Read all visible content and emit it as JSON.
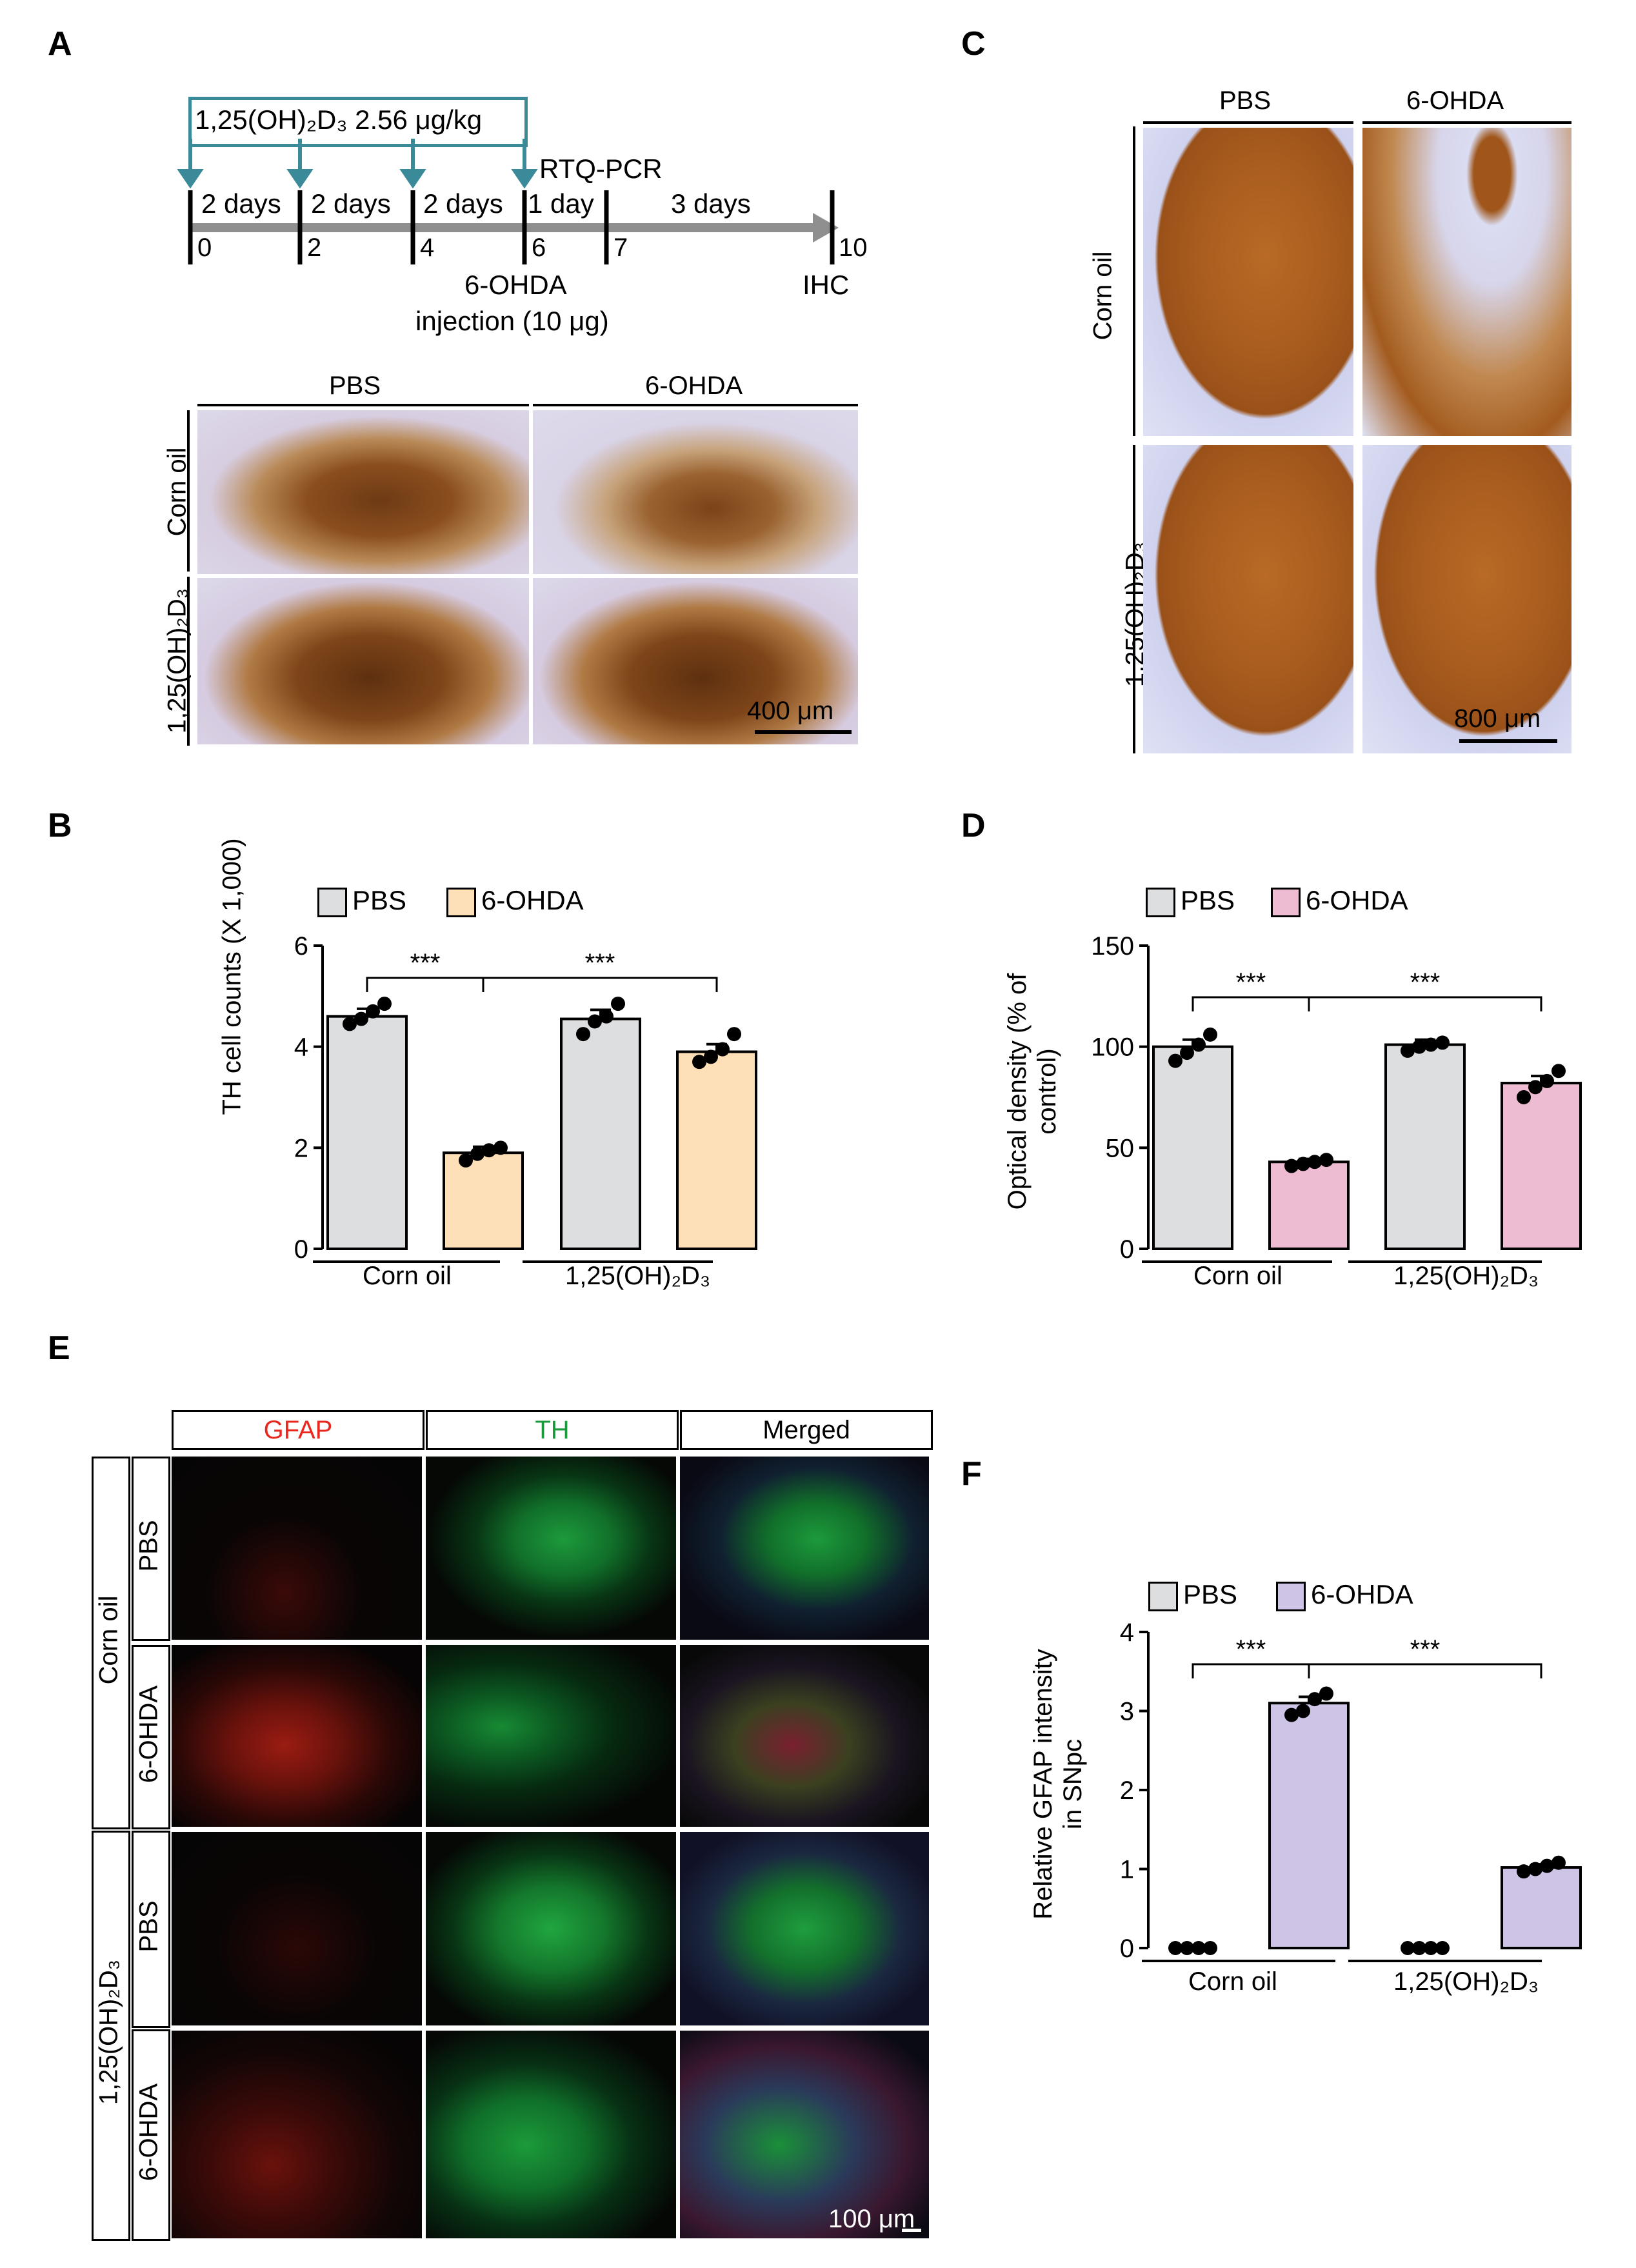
{
  "panels": {
    "A": "A",
    "B": "B",
    "C": "C",
    "D": "D",
    "E": "E",
    "F": "F"
  },
  "timeline": {
    "treatment": "1,25(OH)₂D₃ 2.56 μg/kg",
    "rtq": "RTQ-PCR",
    "intervals": [
      "2 days",
      "2 days",
      "2 days",
      "1 day",
      "3 days"
    ],
    "days": [
      "0",
      "2",
      "4",
      "6",
      "7",
      "10"
    ],
    "lesion": "6-OHDA",
    "lesion_dose": "injection (10 μg)",
    "ihc": "IHC"
  },
  "ihc_A": {
    "cols": [
      "PBS",
      "6-OHDA"
    ],
    "rows": [
      "Corn oil",
      "1,25(OH)₂D₃"
    ],
    "scale": "400 μm"
  },
  "ihc_C": {
    "cols": [
      "PBS",
      "6-OHDA"
    ],
    "rows": [
      "Corn oil",
      "1,25(OH)₂D₃"
    ],
    "scale": "800 μm"
  },
  "fluor_E": {
    "cols": [
      "GFAP",
      "TH",
      "Merged"
    ],
    "groups": [
      "Corn oil",
      "1,25(OH)₂D₃"
    ],
    "rows": [
      "PBS",
      "6-OHDA",
      "PBS",
      "6-OHDA"
    ],
    "scale": "100 μm",
    "colors": {
      "GFAP": "#e8281e",
      "TH": "#1a9a3a"
    }
  },
  "chart_data": [
    {
      "panel": "B",
      "type": "bar",
      "ylabel": "TH cell counts (X 1,000)",
      "ylim": [
        0,
        6
      ],
      "yticks": [
        "0",
        "2",
        "4",
        "6"
      ],
      "groups": [
        "Corn oil",
        "1,25(OH)₂D₃"
      ],
      "legend": [
        "PBS",
        "6-OHDA"
      ],
      "colors": [
        "#dddee0",
        "#fde0b8"
      ],
      "values": [
        4.6,
        1.9,
        4.55,
        3.9
      ],
      "errors": [
        0.15,
        0.12,
        0.18,
        0.15
      ],
      "points": [
        [
          4.45,
          4.55,
          4.7,
          4.85
        ],
        [
          1.75,
          1.88,
          1.95,
          2.0
        ],
        [
          4.25,
          4.5,
          4.6,
          4.85
        ],
        [
          3.7,
          3.8,
          3.95,
          4.25
        ]
      ],
      "sig": [
        "***",
        "***"
      ]
    },
    {
      "panel": "D",
      "type": "bar",
      "ylabel": "Optical density (% of control)",
      "ylim": [
        0,
        150
      ],
      "yticks": [
        "0",
        "50",
        "100",
        "150"
      ],
      "groups": [
        "Corn oil",
        "1,25(OH)₂D₃"
      ],
      "legend": [
        "PBS",
        "6-OHDA"
      ],
      "colors": [
        "#dddee0",
        "#eebcd2"
      ],
      "values": [
        100,
        43,
        101,
        82
      ],
      "errors": [
        3.5,
        1.5,
        2.5,
        3.5
      ],
      "points": [
        [
          93,
          97,
          101,
          106
        ],
        [
          41,
          42,
          43,
          44
        ],
        [
          98,
          100,
          101,
          102
        ],
        [
          75,
          80,
          83,
          88
        ]
      ],
      "sig": [
        "***",
        "***"
      ]
    },
    {
      "panel": "F",
      "type": "bar",
      "ylabel": "Relative GFAP intensity in SNpc",
      "ylim": [
        0,
        4
      ],
      "yticks": [
        "0",
        "1",
        "2",
        "3",
        "4"
      ],
      "groups": [
        "Corn oil",
        "1,25(OH)₂D₃"
      ],
      "legend": [
        "PBS",
        "6-OHDA"
      ],
      "colors": [
        "#dddee0",
        "#cec4e6"
      ],
      "values": [
        0,
        3.1,
        0,
        1.02
      ],
      "errors": [
        0,
        0.08,
        0,
        0.04
      ],
      "points": [
        [
          0,
          0,
          0,
          0
        ],
        [
          2.95,
          3.0,
          3.15,
          3.22
        ],
        [
          0,
          0,
          0,
          0
        ],
        [
          0.97,
          1.0,
          1.04,
          1.08
        ]
      ],
      "sig": [
        "***",
        "***"
      ]
    }
  ]
}
